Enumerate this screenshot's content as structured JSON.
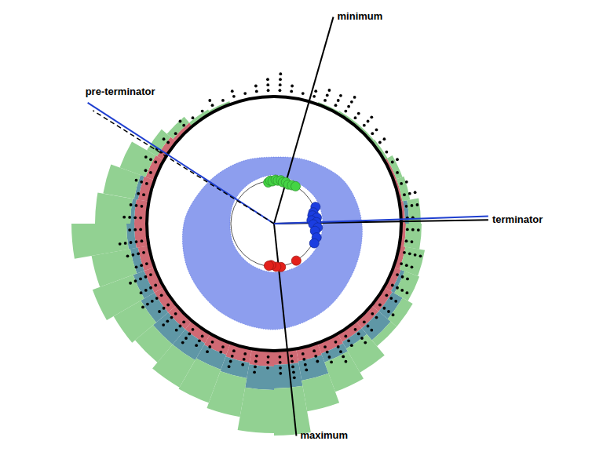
{
  "chart_data": {
    "type": "polar",
    "rlim": [
      0,
      290
    ],
    "tick_labels": false,
    "stacked": true,
    "reference_circles": [
      {
        "radius": 55,
        "color": "#555555"
      },
      {
        "radius": 162,
        "color": "#000000"
      }
    ],
    "reference_lines": [
      {
        "label": "minimum",
        "angle": 16,
        "radius": 274,
        "color": "#000000",
        "line_style": "solid"
      },
      {
        "label": "maximum",
        "angle": 174,
        "radius": 272,
        "color": "#000000",
        "line_style": "solid"
      },
      {
        "label": "terminator",
        "angle": 89,
        "radius": 273,
        "color": "#000000",
        "line_style": "solid"
      },
      {
        "angle": 88,
        "radius": 273,
        "color": "#1f3fd0",
        "line_style": "solid"
      },
      {
        "label": "pre-terminator",
        "angle": 303,
        "radius": 283,
        "color": "#1f3fd0",
        "line_style": "solid"
      },
      {
        "angle": 302,
        "radius": 272,
        "color": "#000000",
        "line_style": "dashed"
      }
    ],
    "ring": {
      "color": "#2f4fe0",
      "angles": [
        0,
        30,
        60,
        90,
        120,
        150,
        180,
        210,
        240,
        270,
        300,
        330
      ],
      "inner": [
        62,
        60,
        62,
        62,
        62,
        62,
        62,
        60,
        58,
        56,
        58,
        60
      ],
      "outer": [
        85,
        92,
        105,
        112,
        118,
        128,
        135,
        132,
        125,
        115,
        100,
        90
      ]
    },
    "histogram": {
      "base": 162,
      "bins": [
        0,
        10,
        20,
        30,
        40,
        50,
        60,
        70,
        80,
        90,
        100,
        110,
        120,
        130,
        140,
        150,
        160,
        170,
        180,
        190,
        200,
        210,
        220,
        230,
        240,
        250,
        260,
        270,
        280,
        290,
        300,
        310,
        320,
        330,
        340,
        350,
        360
      ],
      "series": [
        {
          "color": "#d06a74",
          "values": [
            0,
            0,
            0,
            0,
            0,
            0,
            4,
            4,
            5,
            6,
            8,
            10,
            12,
            12,
            12,
            14,
            16,
            18,
            20,
            18,
            16,
            14,
            14,
            14,
            14,
            14,
            16,
            16,
            14,
            12,
            10,
            6,
            0,
            0,
            0,
            0
          ]
        },
        {
          "color": "#5f97a6",
          "values": [
            0,
            0,
            0,
            0,
            0,
            0,
            0,
            0,
            5,
            0,
            0,
            5,
            15,
            20,
            10,
            12,
            25,
            30,
            30,
            20,
            20,
            25,
            25,
            20,
            15,
            10,
            10,
            5,
            5,
            0,
            0,
            0,
            0,
            0,
            0,
            0
          ]
        },
        {
          "color": "#92d192",
          "values": [
            0,
            0,
            3,
            4,
            4,
            5,
            8,
            10,
            15,
            20,
            25,
            20,
            15,
            10,
            35,
            40,
            40,
            60,
            55,
            50,
            45,
            40,
            30,
            40,
            55,
            50,
            70,
            45,
            40,
            35,
            15,
            10,
            6,
            4,
            0,
            0
          ]
        }
      ]
    },
    "events": {
      "color": "#000000",
      "angles": [
        2.5,
        7.5,
        12.5,
        17.5,
        22.5,
        27.5,
        32.5,
        37.5,
        42.5,
        47.5,
        52.5,
        57.5,
        62.5,
        67.5,
        72.5,
        77.5,
        82.5,
        87.5,
        92.5,
        97.5,
        102.5,
        107.5,
        112.5,
        117.5,
        122.5,
        127.5,
        132.5,
        137.5,
        142.5,
        147.5,
        152.5,
        157.5,
        162.5,
        167.5,
        172.5,
        177.5,
        182.5,
        187.5,
        192.5,
        197.5,
        202.5,
        207.5,
        212.5,
        217.5,
        222.5,
        227.5,
        232.5,
        237.5,
        242.5,
        247.5,
        252.5,
        257.5,
        262.5,
        267.5,
        272.5,
        277.5,
        282.5,
        287.5,
        292.5,
        297.5,
        302.5,
        307.5,
        312.5,
        317.5,
        322.5,
        327.5,
        332.5,
        337.5,
        342.5,
        347.5,
        352.5,
        357.5
      ],
      "counts": [
        4,
        2,
        1,
        2,
        3,
        3,
        4,
        2,
        3,
        2,
        2,
        1,
        2,
        1,
        2,
        3,
        3,
        2,
        3,
        2,
        4,
        3,
        3,
        4,
        3,
        4,
        2,
        3,
        4,
        3,
        5,
        4,
        3,
        4,
        5,
        4,
        3,
        4,
        3,
        4,
        2,
        3,
        3,
        4,
        3,
        4,
        3,
        5,
        4,
        5,
        3,
        4,
        5,
        3,
        4,
        3,
        2,
        3,
        2,
        3,
        2,
        2,
        1,
        2,
        1,
        1,
        2,
        1,
        2,
        1,
        2,
        3
      ]
    },
    "points": [
      {
        "color": "#44d444",
        "angles": [
          352,
          355,
          358,
          2,
          5,
          9,
          12,
          16,
          20,
          25,
          30
        ],
        "radius": [
          53,
          55,
          54,
          56,
          55,
          56,
          54,
          55,
          53,
          54,
          55
        ]
      },
      {
        "color": "#1b3de0",
        "angles": [
          68,
          74,
          78,
          82,
          85,
          88,
          91,
          95,
          100,
          108,
          116
        ],
        "radius": [
          57,
          52,
          50,
          55,
          48,
          54,
          50,
          56,
          53,
          57,
          57
        ]
      },
      {
        "color": "#e3201b",
        "angles": [
          149,
          171,
          177,
          184,
          187
        ],
        "radius": [
          55,
          56,
          55,
          53,
          54
        ]
      }
    ]
  }
}
